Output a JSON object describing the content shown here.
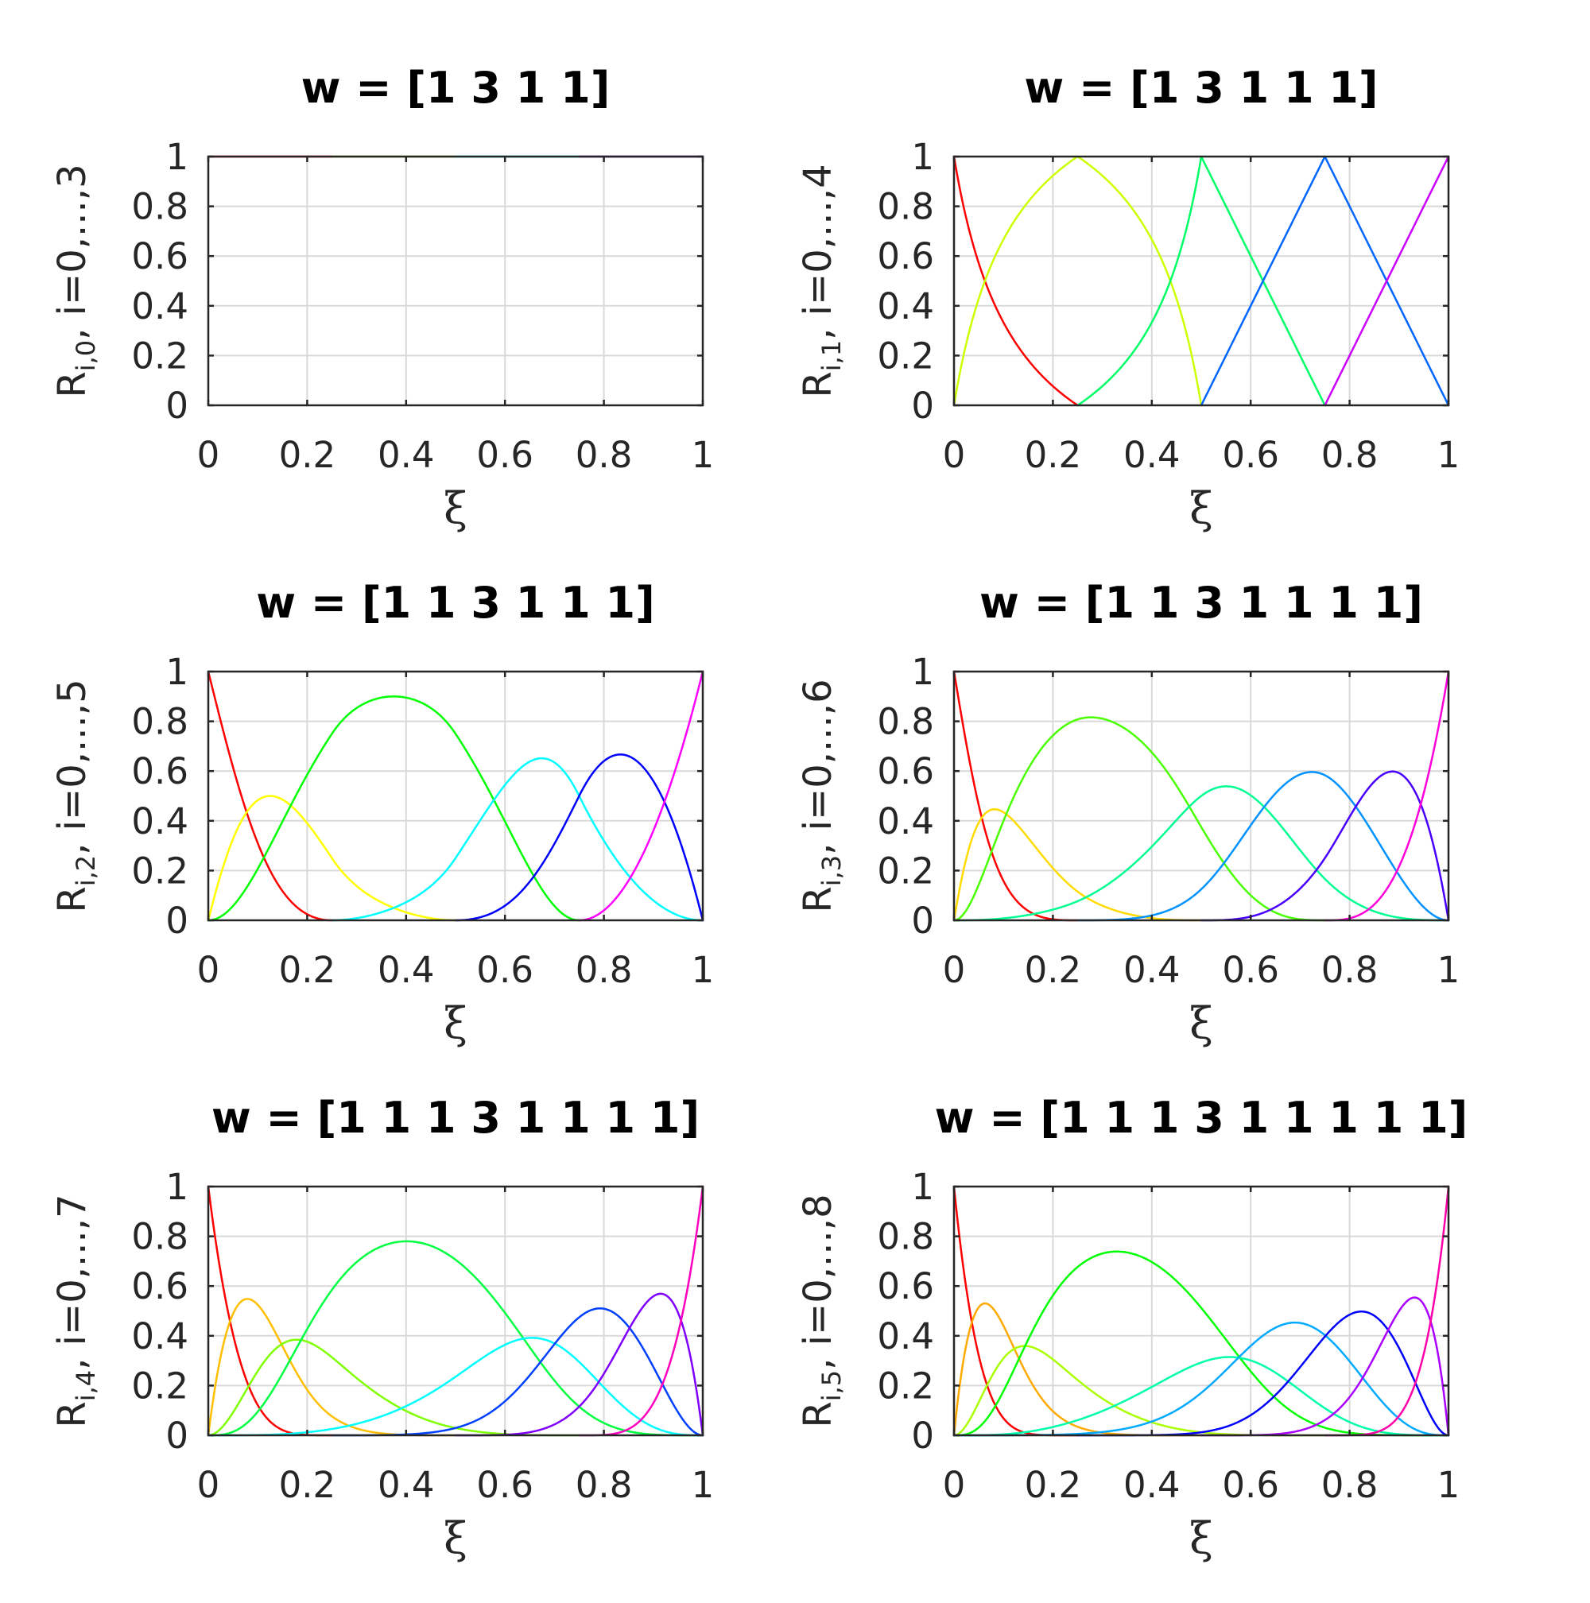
{
  "chart_data": [
    {
      "type": "line",
      "title": "w = [1 3 1 1]",
      "xlabel": "ξ",
      "ylabel": {
        "base": "R",
        "sub": "i,0",
        "rest": ", i=0,...,3"
      },
      "p": 0,
      "knots": [
        0,
        0.25,
        0.5,
        0.75,
        1
      ],
      "weights": [
        1,
        3,
        1,
        1
      ],
      "xlim": [
        0,
        1
      ],
      "ylim": [
        0,
        1
      ],
      "xticks": [
        "0",
        "0.2",
        "0.4",
        "0.6",
        "0.8",
        "1"
      ],
      "yticks": [
        "0",
        "0.2",
        "0.4",
        "0.6",
        "0.8",
        "1"
      ],
      "grid": true,
      "colors": [
        "#ff0000",
        "#80ff00",
        "#00ffff",
        "#8000ff"
      ]
    },
    {
      "type": "line",
      "title": "w = [1 3 1 1 1]",
      "xlabel": "ξ",
      "ylabel": {
        "base": "R",
        "sub": "i,1",
        "rest": ", i=0,...,4"
      },
      "p": 1,
      "knots": [
        0,
        0.25,
        0.5,
        0.75,
        1
      ],
      "weights": [
        1,
        3,
        1,
        1,
        1
      ],
      "xlim": [
        0,
        1
      ],
      "ylim": [
        0,
        1
      ],
      "xticks": [
        "0",
        "0.2",
        "0.4",
        "0.6",
        "0.8",
        "1"
      ],
      "yticks": [
        "0",
        "0.2",
        "0.4",
        "0.6",
        "0.8",
        "1"
      ],
      "grid": true,
      "colors": [
        "#ff0000",
        "#ccff00",
        "#00ff66",
        "#0066ff",
        "#cc00ff"
      ]
    },
    {
      "type": "line",
      "title": "w = [1 1 3 1 1 1]",
      "xlabel": "ξ",
      "ylabel": {
        "base": "R",
        "sub": "i,2",
        "rest": ", i=0,...,5"
      },
      "p": 2,
      "knots": [
        0,
        0.25,
        0.5,
        0.75,
        1
      ],
      "weights": [
        1,
        1,
        3,
        1,
        1,
        1
      ],
      "xlim": [
        0,
        1
      ],
      "ylim": [
        0,
        1
      ],
      "xticks": [
        "0",
        "0.2",
        "0.4",
        "0.6",
        "0.8",
        "1"
      ],
      "yticks": [
        "0",
        "0.2",
        "0.4",
        "0.6",
        "0.8",
        "1"
      ],
      "grid": true,
      "colors": [
        "#ff0000",
        "#ffff00",
        "#00ff00",
        "#00ffff",
        "#0000ff",
        "#ff00ff"
      ]
    },
    {
      "type": "line",
      "title": "w = [1 1 3 1 1 1 1]",
      "xlabel": "ξ",
      "ylabel": {
        "base": "R",
        "sub": "i,3",
        "rest": ", i=0,...,6"
      },
      "p": 3,
      "knots": [
        0,
        0.25,
        0.5,
        0.75,
        1
      ],
      "weights": [
        1,
        1,
        3,
        1,
        1,
        1,
        1
      ],
      "xlim": [
        0,
        1
      ],
      "ylim": [
        0,
        1
      ],
      "xticks": [
        "0",
        "0.2",
        "0.4",
        "0.6",
        "0.8",
        "1"
      ],
      "yticks": [
        "0",
        "0.2",
        "0.4",
        "0.6",
        "0.8",
        "1"
      ],
      "grid": true,
      "colors": [
        "#ff0000",
        "#ffdb00",
        "#49ff00",
        "#00ff92",
        "#0092ff",
        "#4900ff",
        "#ff00db"
      ]
    },
    {
      "type": "line",
      "title": "w = [1 1 1 3 1 1 1 1]",
      "xlabel": "ξ",
      "ylabel": {
        "base": "R",
        "sub": "i,4",
        "rest": ", i=0,...,7"
      },
      "p": 4,
      "knots": [
        0,
        0.25,
        0.5,
        0.75,
        1
      ],
      "weights": [
        1,
        1,
        1,
        3,
        1,
        1,
        1,
        1
      ],
      "xlim": [
        0,
        1
      ],
      "ylim": [
        0,
        1
      ],
      "xticks": [
        "0",
        "0.2",
        "0.4",
        "0.6",
        "0.8",
        "1"
      ],
      "yticks": [
        "0",
        "0.2",
        "0.4",
        "0.6",
        "0.8",
        "1"
      ],
      "grid": true,
      "colors": [
        "#ff0000",
        "#ffbf00",
        "#80ff00",
        "#00ff40",
        "#00ffff",
        "#0040ff",
        "#8000ff",
        "#ff00bf"
      ]
    },
    {
      "type": "line",
      "title": "w = [1 1 1 3 1 1 1 1 1]",
      "xlabel": "ξ",
      "ylabel": {
        "base": "R",
        "sub": "i,5",
        "rest": ", i=0,...,8"
      },
      "p": 5,
      "knots": [
        0,
        0.25,
        0.5,
        0.75,
        1
      ],
      "weights": [
        1,
        1,
        1,
        3,
        1,
        1,
        1,
        1,
        1
      ],
      "xlim": [
        0,
        1
      ],
      "ylim": [
        0,
        1
      ],
      "xticks": [
        "0",
        "0.2",
        "0.4",
        "0.6",
        "0.8",
        "1"
      ],
      "yticks": [
        "0",
        "0.2",
        "0.4",
        "0.6",
        "0.8",
        "1"
      ],
      "grid": true,
      "colors": [
        "#ff0000",
        "#ffaa00",
        "#aaff00",
        "#00ff00",
        "#00ffaa",
        "#00aaff",
        "#0000ff",
        "#aa00ff",
        "#ff00aa"
      ]
    }
  ]
}
